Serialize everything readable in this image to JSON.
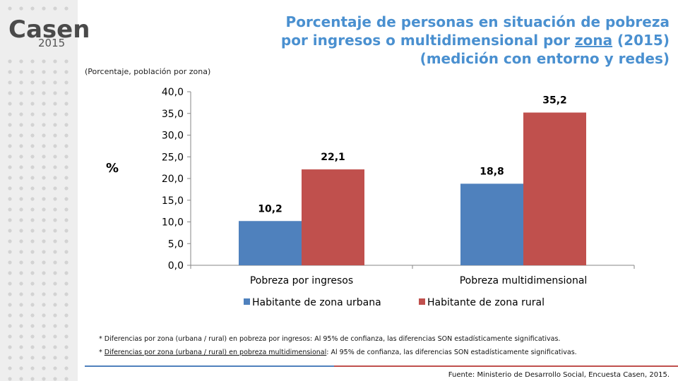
{
  "logo": {
    "word": "Casen",
    "year": "2015"
  },
  "title": {
    "line1": "Porcentaje de personas en situación de pobreza",
    "line2_before": "por ingresos o multidimensional por ",
    "line2_underlined": "zona",
    "line2_after": " (2015)",
    "line3": "(medición con entorno y redes)"
  },
  "subtitle": "(Porcentaje, población por zona)",
  "ylabel": "%",
  "colors": {
    "title": "#4a90d0",
    "urbana": "#4f81bd",
    "rural": "#c0504d"
  },
  "chart_data": {
    "type": "bar",
    "categories": [
      "Pobreza por ingresos",
      "Pobreza multidimensional"
    ],
    "series": [
      {
        "name": "Habitante de zona urbana",
        "values": [
          10.2,
          18.8
        ],
        "labels": [
          "10,2",
          "18,8"
        ]
      },
      {
        "name": "Habitante de zona rural",
        "values": [
          22.1,
          35.2
        ],
        "labels": [
          "22,1",
          "35,2"
        ]
      }
    ],
    "ylim": [
      0,
      40
    ],
    "yticks": [
      "0,0",
      "5,0",
      "10,0",
      "15,0",
      "20,0",
      "25,0",
      "30,0",
      "35,0",
      "40,0"
    ],
    "ylabel": "%",
    "legend_position": "bottom",
    "grid": false
  },
  "notes": {
    "note1": "* Diferencias por zona (urbana / rural) en pobreza por ingresos: Al 95% de confianza, las diferencias SON estadísticamente significativas.",
    "note2_prefix": "* ",
    "note2_underlined": "Diferencias por zona (urbana / rural) en pobreza multidimensional",
    "note2_rest": ": Al 95% de confianza, las diferencias SON estadísticamente significativas."
  },
  "source": "Fuente: Ministerio de Desarrollo Social, Encuesta Casen, 2015."
}
